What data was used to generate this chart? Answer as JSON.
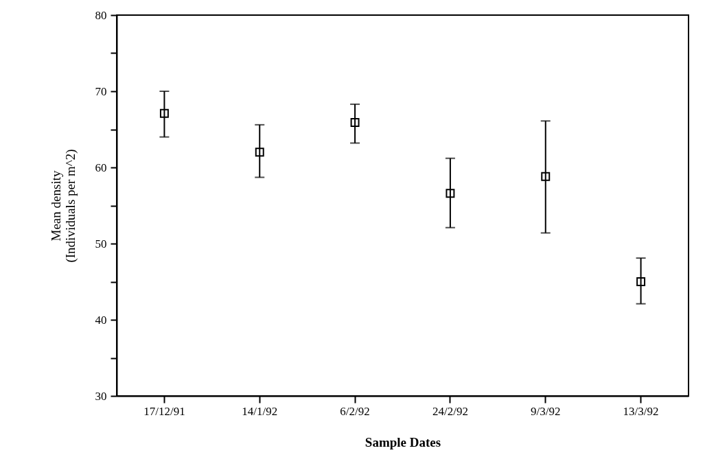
{
  "chart_data": {
    "type": "scatter",
    "xlabel": "Sample Dates",
    "ylabel": "Mean density\n(Individuals per m^2)",
    "categories": [
      "17/12/91",
      "14/1/92",
      "6/2/92",
      "24/2/92",
      "9/3/92",
      "13/3/92"
    ],
    "series": [
      {
        "color": "#000000",
        "values": [
          67.1,
          62.0,
          65.9,
          56.6,
          58.8,
          45.0
        ],
        "errors": [
          [
            64.0,
            70.0
          ],
          [
            58.7,
            65.6
          ],
          [
            63.2,
            68.3
          ],
          [
            52.1,
            61.2
          ],
          [
            51.4,
            66.1
          ],
          [
            42.1,
            48.1
          ]
        ]
      }
    ],
    "ylim": [
      30,
      80
    ],
    "yticks": [
      30,
      {
        "value": 35,
        "label": null
      },
      40,
      {
        "value": 45,
        "label": null
      },
      50,
      {
        "value": 55,
        "label": null
      },
      60,
      {
        "value": 65,
        "label": null
      },
      70,
      {
        "value": 75,
        "label": null
      },
      80
    ],
    "marker": "square",
    "grid": false
  }
}
